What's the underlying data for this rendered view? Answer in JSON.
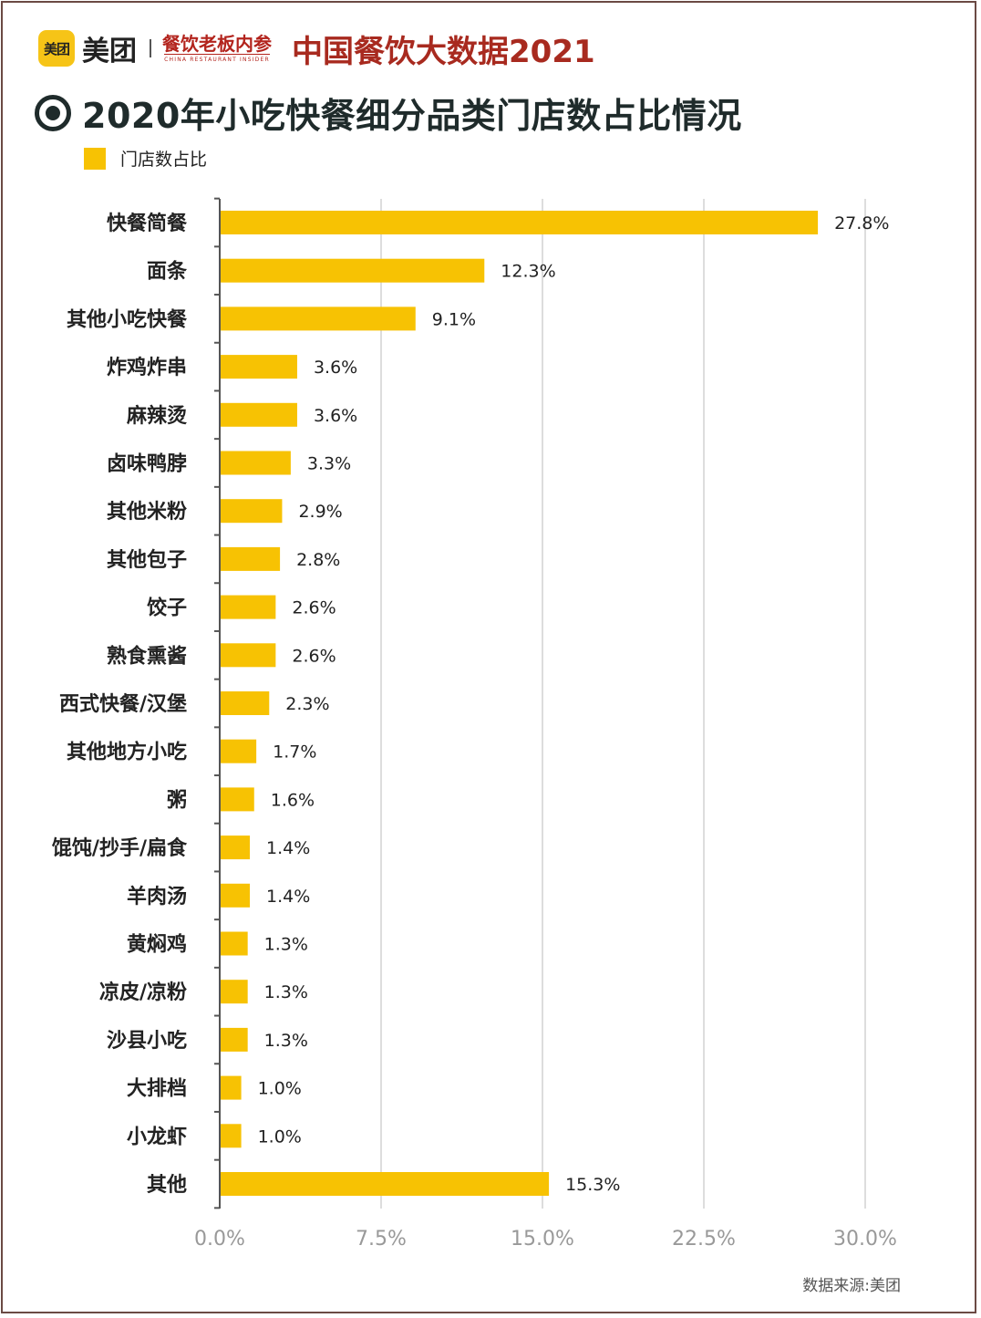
{
  "header": {
    "logo_mark": "美团",
    "brand": "美团",
    "brand2_cn": "餐饮老板内参",
    "brand2_en": "CHINA RESTAURANT INSIDER",
    "title": "中国餐饮大数据2021"
  },
  "chart_title": "2020年小吃快餐细分品类门店数占比情况",
  "source": "数据来源:美团",
  "colors": {
    "bar": "#f7c203",
    "grid": "#bbbbbb",
    "axis": "#555555",
    "frame": "#6b4a44",
    "header_red": "#a82a1f"
  },
  "chart_data": {
    "type": "bar",
    "orientation": "horizontal",
    "title": "2020年小吃快餐细分品类门店数占比情况",
    "categories": [
      "快餐简餐",
      "面条",
      "其他小吃快餐",
      "炸鸡炸串",
      "麻辣烫",
      "卤味鸭脖",
      "其他米粉",
      "其他包子",
      "饺子",
      "熟食熏酱",
      "西式快餐/汉堡",
      "其他地方小吃",
      "粥",
      "馄饨/抄手/扁食",
      "羊肉汤",
      "黄焖鸡",
      "凉皮/凉粉",
      "沙县小吃",
      "大排档",
      "小龙虾",
      "其他"
    ],
    "series": [
      {
        "name": "门店数占比",
        "values": [
          27.8,
          12.3,
          9.1,
          3.6,
          3.6,
          3.3,
          2.9,
          2.8,
          2.6,
          2.6,
          2.3,
          1.7,
          1.6,
          1.4,
          1.4,
          1.3,
          1.3,
          1.3,
          1.0,
          1.0,
          15.3
        ]
      }
    ],
    "value_labels": [
      "27.8%",
      "12.3%",
      "9.1%",
      "3.6%",
      "3.6%",
      "3.3%",
      "2.9%",
      "2.8%",
      "2.6%",
      "2.6%",
      "2.3%",
      "1.7%",
      "1.6%",
      "1.4%",
      "1.4%",
      "1.3%",
      "1.3%",
      "1.3%",
      "1.0%",
      "1.0%",
      "15.3%"
    ],
    "x_ticks": [
      0,
      7.5,
      15,
      22.5,
      30
    ],
    "x_tick_labels": [
      "0.0%",
      "7.5%",
      "15.0%",
      "22.5%",
      "30.0%"
    ],
    "xlim": [
      0,
      30
    ],
    "xlabel": "",
    "ylabel": "",
    "grid": "vertical",
    "legend_position": "top-left"
  }
}
